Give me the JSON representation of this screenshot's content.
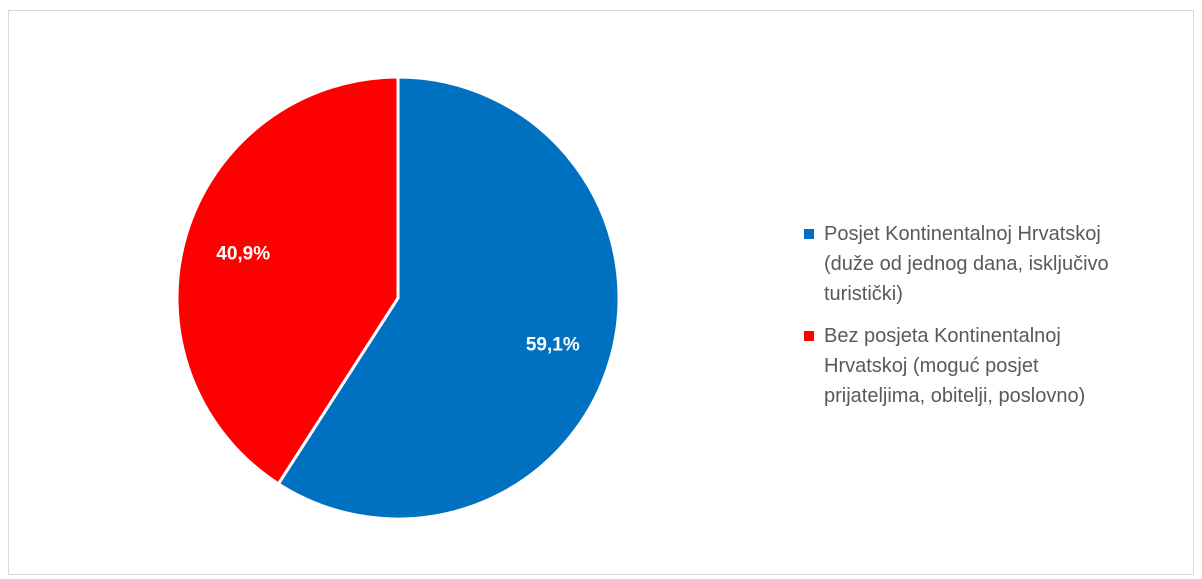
{
  "chart_data": {
    "type": "pie",
    "title": "",
    "slices": [
      {
        "label": "Posjet Kontinentalnoj Hrvatskoj\n(duže od jednog dana, isključivo\nturistički)",
        "value": 59.1,
        "display": "59,1%",
        "color": "#0070C0"
      },
      {
        "label": "Bez posjeta Kontinentalnoj\nHrvatskoj (moguć posjet\nprijateljima, obitelji, poslovno)",
        "value": 40.9,
        "display": "40,9%",
        "color": "#FF0000"
      }
    ],
    "legend_position": "right"
  }
}
